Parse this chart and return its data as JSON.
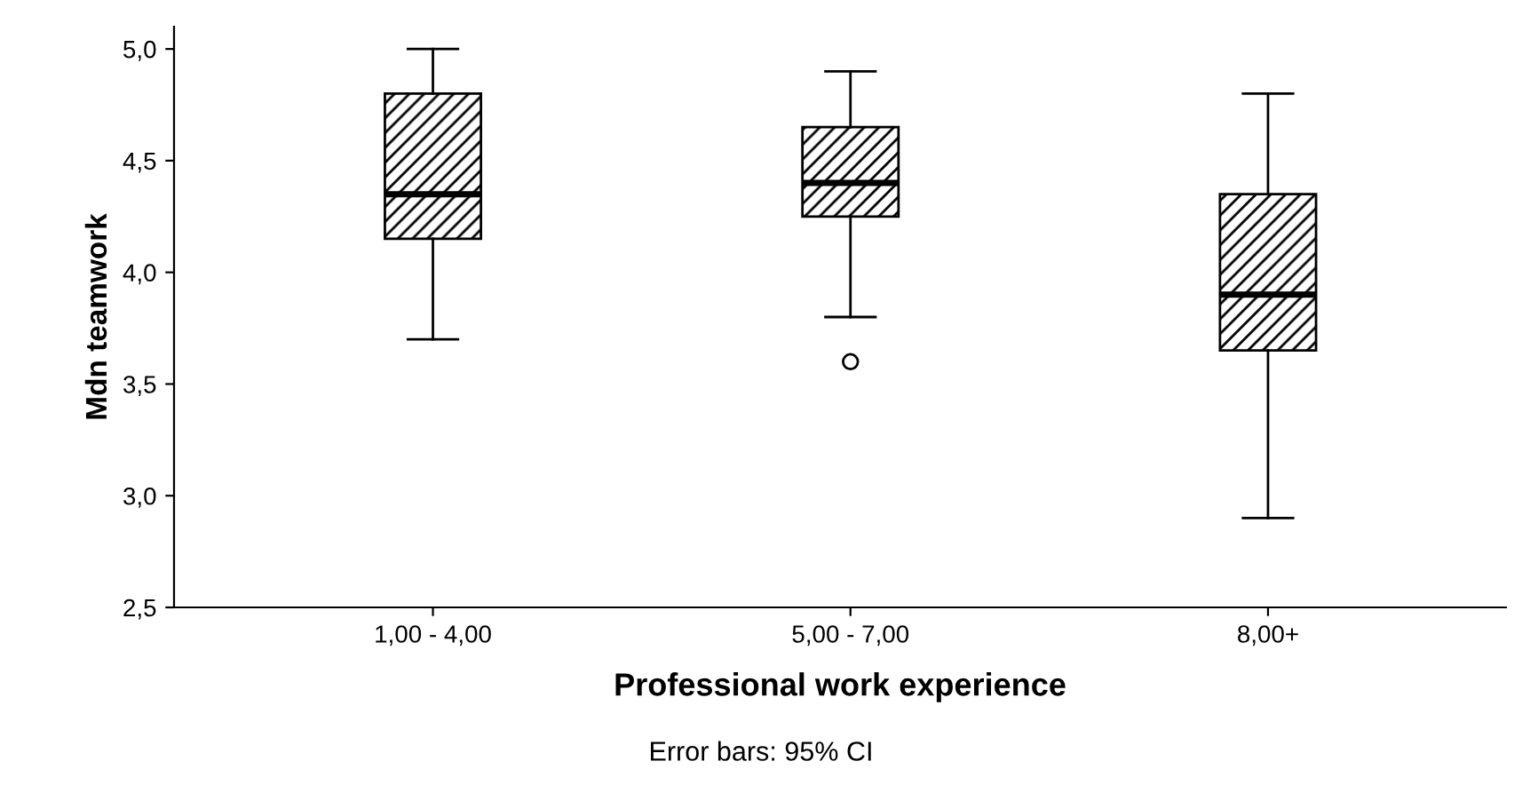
{
  "chart_data": {
    "type": "box",
    "xlabel": "Professional work experience",
    "ylabel": "Mdn teamwork",
    "categories": [
      "1,00 - 4,00",
      "5,00 - 7,00",
      "8,00+"
    ],
    "boxes": [
      {
        "low": 3.7,
        "q1": 4.15,
        "median": 4.35,
        "q3": 4.8,
        "high": 5.0
      },
      {
        "low": 3.8,
        "q1": 4.25,
        "median": 4.4,
        "q3": 4.65,
        "high": 4.9,
        "outliers": [
          3.6
        ]
      },
      {
        "low": 2.9,
        "q1": 3.65,
        "median": 3.9,
        "q3": 4.35,
        "high": 4.8
      }
    ],
    "color": "#000000",
    "ylim": [
      2.5,
      5.1
    ],
    "yticks": [
      {
        "value": 2.5,
        "label": "2,5"
      },
      {
        "value": 3.0,
        "label": "3,0"
      },
      {
        "value": 3.5,
        "label": "3,5"
      },
      {
        "value": 4.0,
        "label": "4,0"
      },
      {
        "value": 4.5,
        "label": "4,5"
      },
      {
        "value": 5.0,
        "label": "5,0"
      }
    ],
    "grid": false,
    "annotations": [
      "Error bars: 95% CI"
    ]
  }
}
